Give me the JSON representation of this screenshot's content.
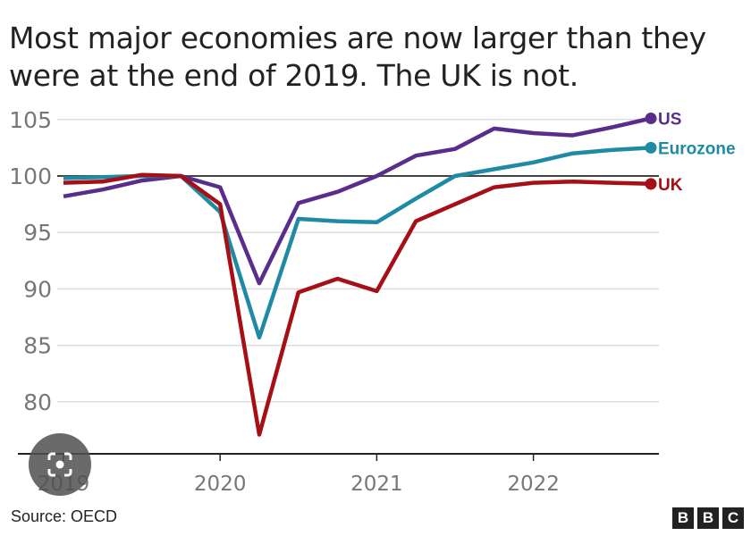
{
  "chart_data": {
    "type": "line",
    "title": "Most major economies are now larger than they were at the end of 2019. The UK is not.",
    "xlabel": "",
    "ylabel": "",
    "ylim": [
      75,
      105
    ],
    "yticks": [
      80,
      85,
      90,
      95,
      100,
      105
    ],
    "xticks": [
      "2019",
      "2020",
      "2021",
      "2022"
    ],
    "x": [
      "2019 Q1",
      "2019 Q2",
      "2019 Q3",
      "2019 Q4",
      "2020 Q1",
      "2020 Q2",
      "2020 Q3",
      "2020 Q4",
      "2021 Q1",
      "2021 Q2",
      "2021 Q3",
      "2021 Q4",
      "2022 Q1",
      "2022 Q2",
      "2022 Q3",
      "2022 Q4"
    ],
    "baseline": 100,
    "grid": true,
    "legend": "direct labels at line ends (right)",
    "series": [
      {
        "name": "US",
        "color": "#5a2d8c",
        "values": [
          98.2,
          98.8,
          99.6,
          100,
          99.0,
          90.5,
          97.6,
          98.6,
          100.0,
          101.8,
          102.4,
          104.2,
          103.8,
          103.6,
          104.3,
          105.1
        ]
      },
      {
        "name": "Eurozone",
        "color": "#1f8aa3",
        "values": [
          99.8,
          99.9,
          100.0,
          100,
          96.8,
          85.7,
          96.2,
          96.0,
          95.9,
          98.0,
          100.0,
          100.6,
          101.2,
          102.0,
          102.3,
          102.5
        ]
      },
      {
        "name": "UK",
        "color": "#a50f15",
        "values": [
          99.4,
          99.5,
          100.1,
          100,
          97.5,
          77.1,
          89.7,
          90.9,
          89.8,
          96.0,
          97.5,
          99.0,
          99.4,
          99.5,
          99.4,
          99.3
        ]
      }
    ]
  },
  "footer": {
    "source": "Source: OECD",
    "logo_letters": [
      "B",
      "B",
      "C"
    ]
  }
}
